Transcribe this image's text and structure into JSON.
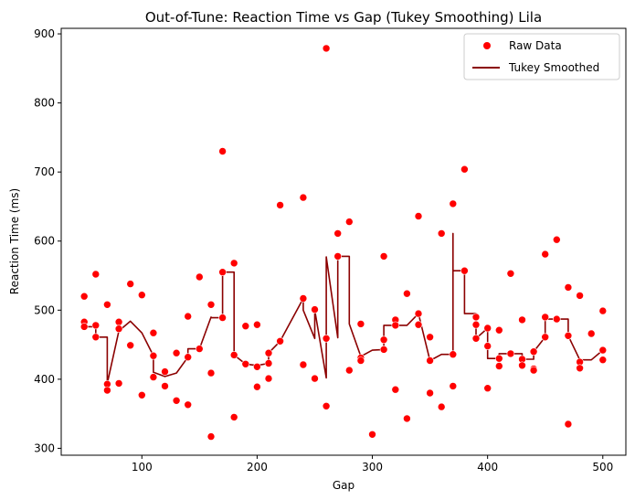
{
  "chart_data": {
    "type": "scatter",
    "title": "Out-of-Tune: Reaction Time vs Gap (Tukey Smoothing) Lila",
    "xlabel": "Gap",
    "ylabel": "Reaction Time (ms)",
    "xlim": [
      30,
      520
    ],
    "ylim": [
      290,
      908
    ],
    "xticks": [
      100,
      200,
      300,
      400,
      500
    ],
    "yticks": [
      300,
      400,
      500,
      600,
      700,
      800,
      900
    ],
    "grid": false,
    "legend_position": "top-right",
    "colors": {
      "raw": "#ff0000",
      "smoothed": "#8b0000"
    },
    "series": [
      {
        "name": "Raw Data",
        "kind": "scatter",
        "points": [
          [
            50,
            520
          ],
          [
            50,
            483
          ],
          [
            50,
            476
          ],
          [
            60,
            552
          ],
          [
            60,
            478
          ],
          [
            60,
            461
          ],
          [
            70,
            508
          ],
          [
            70,
            393
          ],
          [
            70,
            384
          ],
          [
            80,
            483
          ],
          [
            80,
            473
          ],
          [
            80,
            394
          ],
          [
            90,
            538
          ],
          [
            90,
            449
          ],
          [
            100,
            522
          ],
          [
            100,
            377
          ],
          [
            110,
            467
          ],
          [
            110,
            434
          ],
          [
            110,
            403
          ],
          [
            120,
            411
          ],
          [
            120,
            390
          ],
          [
            130,
            438
          ],
          [
            130,
            369
          ],
          [
            140,
            491
          ],
          [
            140,
            432
          ],
          [
            140,
            363
          ],
          [
            150,
            548
          ],
          [
            150,
            444
          ],
          [
            160,
            508
          ],
          [
            160,
            409
          ],
          [
            160,
            317
          ],
          [
            170,
            730
          ],
          [
            170,
            555
          ],
          [
            170,
            489
          ],
          [
            180,
            568
          ],
          [
            180,
            435
          ],
          [
            180,
            345
          ],
          [
            190,
            477
          ],
          [
            190,
            422
          ],
          [
            200,
            479
          ],
          [
            200,
            418
          ],
          [
            200,
            389
          ],
          [
            210,
            438
          ],
          [
            210,
            423
          ],
          [
            210,
            401
          ],
          [
            220,
            652
          ],
          [
            220,
            455
          ],
          [
            240,
            663
          ],
          [
            240,
            517
          ],
          [
            240,
            421
          ],
          [
            250,
            501
          ],
          [
            250,
            401
          ],
          [
            260,
            879
          ],
          [
            260,
            459
          ],
          [
            260,
            361
          ],
          [
            270,
            611
          ],
          [
            270,
            578
          ],
          [
            280,
            628
          ],
          [
            280,
            413
          ],
          [
            290,
            480
          ],
          [
            290,
            431
          ],
          [
            290,
            427
          ],
          [
            300,
            320
          ],
          [
            310,
            578
          ],
          [
            310,
            457
          ],
          [
            310,
            443
          ],
          [
            320,
            486
          ],
          [
            320,
            478
          ],
          [
            320,
            385
          ],
          [
            330,
            524
          ],
          [
            330,
            343
          ],
          [
            340,
            636
          ],
          [
            340,
            495
          ],
          [
            340,
            479
          ],
          [
            350,
            461
          ],
          [
            350,
            427
          ],
          [
            350,
            380
          ],
          [
            360,
            611
          ],
          [
            360,
            360
          ],
          [
            370,
            654
          ],
          [
            370,
            436
          ],
          [
            370,
            390
          ],
          [
            380,
            704
          ],
          [
            380,
            557
          ],
          [
            390,
            490
          ],
          [
            390,
            479
          ],
          [
            390,
            459
          ],
          [
            400,
            474
          ],
          [
            400,
            448
          ],
          [
            400,
            387
          ],
          [
            410,
            471
          ],
          [
            410,
            430
          ],
          [
            410,
            419
          ],
          [
            420,
            553
          ],
          [
            420,
            437
          ],
          [
            430,
            486
          ],
          [
            430,
            429
          ],
          [
            430,
            420
          ],
          [
            440,
            415
          ],
          [
            440,
            413
          ],
          [
            440,
            440
          ],
          [
            450,
            581
          ],
          [
            450,
            490
          ],
          [
            450,
            461
          ],
          [
            460,
            602
          ],
          [
            460,
            487
          ],
          [
            470,
            533
          ],
          [
            470,
            463
          ],
          [
            470,
            335
          ],
          [
            480,
            521
          ],
          [
            480,
            425
          ],
          [
            480,
            416
          ],
          [
            490,
            466
          ],
          [
            500,
            499
          ],
          [
            500,
            442
          ],
          [
            500,
            428
          ]
        ]
      },
      {
        "name": "Tukey Smoothed",
        "kind": "line",
        "points": [
          [
            50,
            476
          ],
          [
            60,
            476
          ],
          [
            60,
            461
          ],
          [
            70,
            461
          ],
          [
            70,
            394
          ],
          [
            80,
            470
          ],
          [
            90,
            484
          ],
          [
            100,
            467
          ],
          [
            110,
            434
          ],
          [
            110,
            410
          ],
          [
            120,
            404
          ],
          [
            130,
            409
          ],
          [
            140,
            432
          ],
          [
            140,
            444
          ],
          [
            150,
            444
          ],
          [
            160,
            490
          ],
          [
            160,
            489
          ],
          [
            170,
            489
          ],
          [
            170,
            555
          ],
          [
            180,
            555
          ],
          [
            180,
            435
          ],
          [
            190,
            422
          ],
          [
            200,
            420
          ],
          [
            210,
            423
          ],
          [
            210,
            438
          ],
          [
            220,
            455
          ],
          [
            240,
            517
          ],
          [
            240,
            500
          ],
          [
            250,
            459
          ],
          [
            250,
            500
          ],
          [
            260,
            402
          ],
          [
            260,
            577
          ],
          [
            270,
            460
          ],
          [
            270,
            578
          ],
          [
            280,
            578
          ],
          [
            280,
            480
          ],
          [
            290,
            433
          ],
          [
            300,
            442
          ],
          [
            310,
            443
          ],
          [
            310,
            478
          ],
          [
            320,
            478
          ],
          [
            330,
            478
          ],
          [
            340,
            495
          ],
          [
            350,
            427
          ],
          [
            360,
            436
          ],
          [
            370,
            436
          ],
          [
            370,
            611
          ],
          [
            370,
            557
          ],
          [
            380,
            557
          ],
          [
            380,
            495
          ],
          [
            390,
            495
          ],
          [
            390,
            459
          ],
          [
            400,
            474
          ],
          [
            400,
            430
          ],
          [
            410,
            430
          ],
          [
            410,
            437
          ],
          [
            420,
            437
          ],
          [
            430,
            437
          ],
          [
            430,
            429
          ],
          [
            440,
            429
          ],
          [
            440,
            440
          ],
          [
            450,
            461
          ],
          [
            450,
            487
          ],
          [
            470,
            487
          ],
          [
            470,
            463
          ],
          [
            480,
            428
          ],
          [
            490,
            428
          ],
          [
            500,
            442
          ]
        ]
      }
    ]
  }
}
